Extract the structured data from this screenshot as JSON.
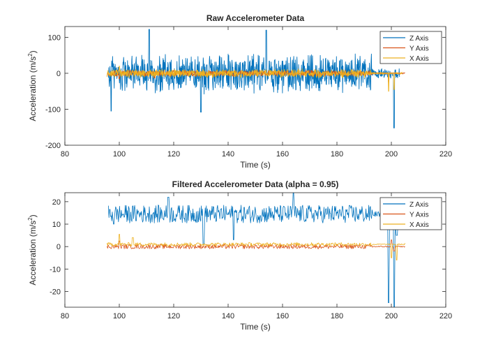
{
  "chart_data": [
    {
      "type": "line",
      "title": "Raw Accelerometer Data",
      "xlabel": "Time (s)",
      "ylabel_main": "Acceleration (m/s",
      "ylabel_sup": "2",
      "ylabel_close": ")",
      "xlim": [
        80,
        220
      ],
      "ylim": [
        -200,
        130
      ],
      "xticks": [
        80,
        100,
        120,
        140,
        160,
        180,
        200,
        220
      ],
      "yticks": [
        -200,
        -100,
        0,
        100
      ],
      "legend": {
        "position": "top-right",
        "entries": [
          "Z Axis",
          "Y Axis",
          "X Axis"
        ]
      },
      "series": [
        {
          "name": "Z Axis",
          "color": "#0072BD",
          "t_start": 96,
          "t_end": 203,
          "center": 0,
          "amplitude": 50,
          "spikes": [
            [
              111,
              122
            ],
            [
              154,
              120
            ],
            [
              201,
              -152
            ],
            [
              97,
              -105
            ],
            [
              130,
              -108
            ]
          ]
        },
        {
          "name": "Y Axis",
          "color": "#D95319",
          "t_start": 95.5,
          "t_end": 205,
          "center": 0,
          "amplitude": 8,
          "spikes": [
            [
              100,
              -15
            ],
            [
              113,
              -13
            ],
            [
              199,
              -25
            ]
          ]
        },
        {
          "name": "X Axis",
          "color": "#EDB120",
          "t_start": 95.5,
          "t_end": 204,
          "center": 0,
          "amplitude": 11,
          "spikes": [
            [
              199,
              -50
            ],
            [
              201,
              -45
            ],
            [
              100,
              20
            ]
          ]
        }
      ]
    },
    {
      "type": "line",
      "title": "Filtered Accelerometer Data (alpha = 0.95)",
      "xlabel": "Time (s)",
      "ylabel_main": "Acceleration (m/s",
      "ylabel_sup": "2",
      "ylabel_close": ")",
      "xlim": [
        80,
        220
      ],
      "ylim": [
        -27,
        24
      ],
      "xticks": [
        80,
        100,
        120,
        140,
        160,
        180,
        200,
        220
      ],
      "yticks": [
        -20,
        -10,
        0,
        10,
        20
      ],
      "legend": {
        "position": "top-right",
        "entries": [
          "Z Axis",
          "Y Axis",
          "X Axis"
        ]
      },
      "series": [
        {
          "name": "Z Axis",
          "color": "#0072BD",
          "t_start": 96,
          "t_end": 203,
          "center": 14.5,
          "amplitude": 4,
          "spikes": [
            [
              131,
              1
            ],
            [
              142,
              3
            ],
            [
              98,
              10
            ],
            [
              118,
              22
            ],
            [
              164,
              24
            ],
            [
              199,
              -25
            ],
            [
              201,
              -27
            ],
            [
              202,
              5
            ]
          ]
        },
        {
          "name": "Y Axis",
          "color": "#D95319",
          "t_start": 95.5,
          "t_end": 205,
          "center": 0,
          "amplitude": 1,
          "spikes": [
            [
              100,
              2.5
            ],
            [
              200,
              3
            ],
            [
              201,
              -2
            ]
          ]
        },
        {
          "name": "X Axis",
          "color": "#EDB120",
          "t_start": 95.5,
          "t_end": 205,
          "center": 1,
          "amplitude": 0.8,
          "spikes": [
            [
              100,
              5.5
            ],
            [
              105,
              4
            ],
            [
              200,
              -5
            ],
            [
              202,
              -6
            ]
          ]
        }
      ]
    }
  ]
}
